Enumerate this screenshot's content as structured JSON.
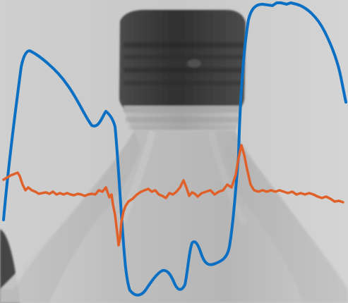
{
  "image": {
    "subject": "bottle-cap",
    "palette": {
      "background": "#c7c7c7",
      "cap": "#3b3b3b",
      "bottle": "#b9b9b9",
      "left_edge": "#2b2b2b",
      "blue_line": "#0b6fc4",
      "orange_line": "#e0602a"
    }
  },
  "overlays": {
    "blue": {
      "color": "#0b6fc4"
    },
    "orange": {
      "color": "#e0602a"
    }
  }
}
